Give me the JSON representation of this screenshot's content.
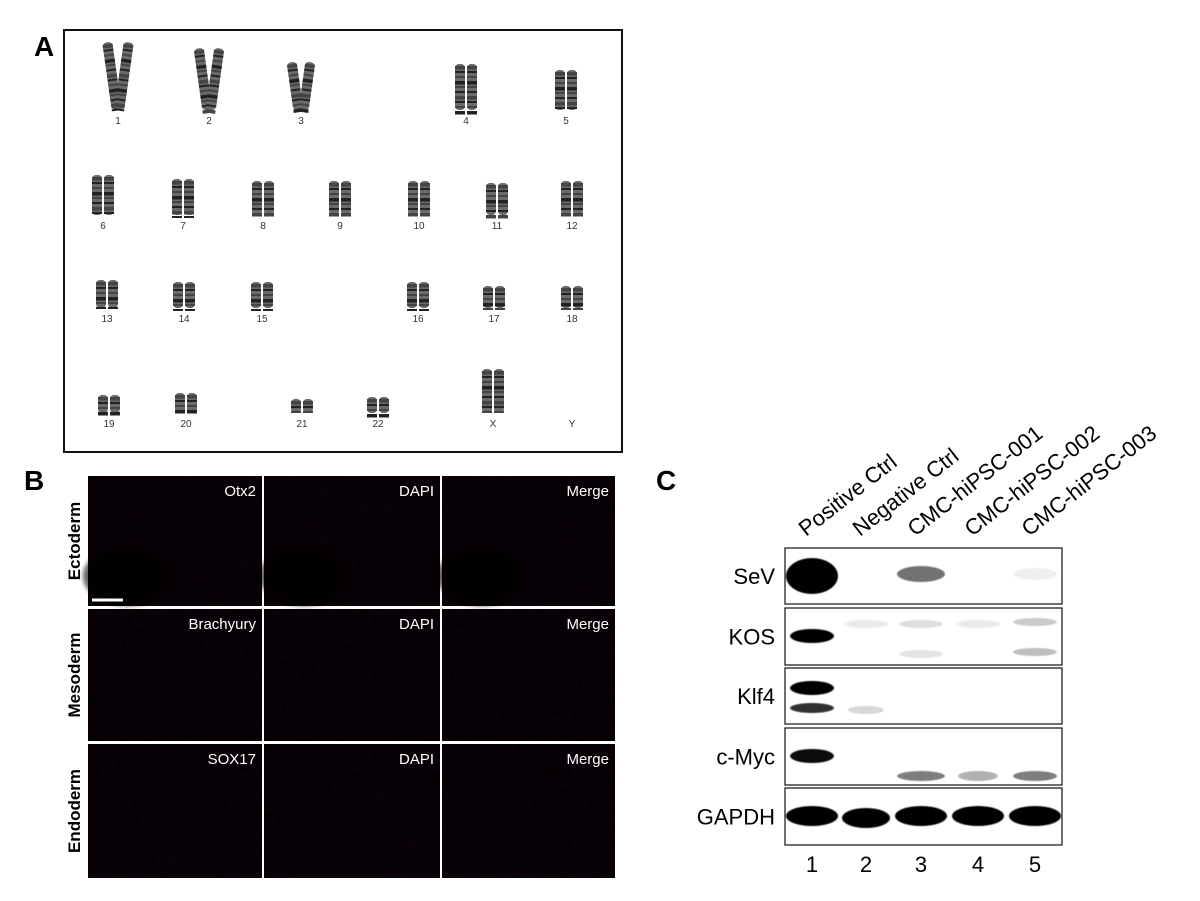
{
  "panels": {
    "A": {
      "label": "A",
      "chromosomes": [
        "1",
        "2",
        "3",
        "4",
        "5",
        "6",
        "7",
        "8",
        "9",
        "10",
        "11",
        "12",
        "13",
        "14",
        "15",
        "16",
        "17",
        "18",
        "19",
        "20",
        "21",
        "22",
        "X",
        "Y"
      ]
    },
    "B": {
      "label": "B",
      "rows": [
        {
          "label": "Ectoderm",
          "markers": [
            "Otx2",
            "DAPI",
            "Merge"
          ]
        },
        {
          "label": "Mesoderm",
          "markers": [
            "Brachyury",
            "DAPI",
            "Merge"
          ]
        },
        {
          "label": "Endoderm",
          "markers": [
            "SOX17",
            "DAPI",
            "Merge"
          ]
        }
      ]
    },
    "C": {
      "label": "C",
      "lanes": [
        "Positive Ctrl",
        "Negative Ctrl",
        "CMC-hiPSC-001",
        "CMC-hiPSC-002",
        "CMC-hiPSC-003"
      ],
      "blots": [
        "SeV",
        "KOS",
        "Klf4",
        "c-Myc",
        "GAPDH"
      ],
      "lane_numbers": [
        "1",
        "2",
        "3",
        "4",
        "5"
      ]
    }
  }
}
